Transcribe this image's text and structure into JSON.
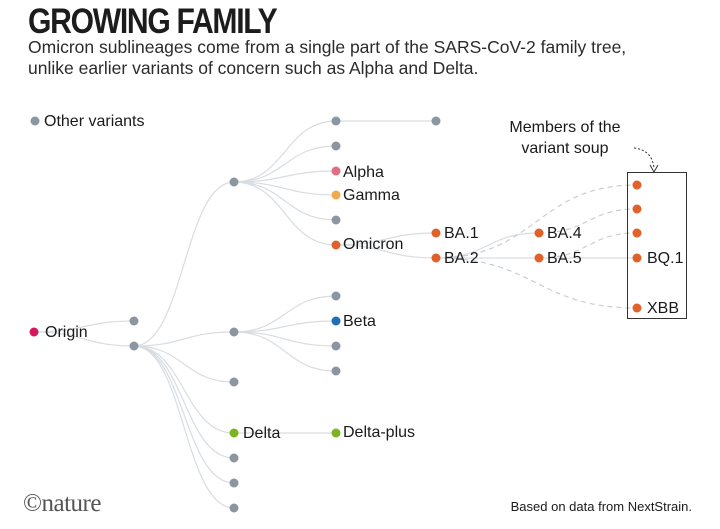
{
  "header": {
    "title": "GROWING FAMILY",
    "subtitle": "Omicron sublineages come from a single part of the SARS-CoV-2 family tree, unlike earlier variants of concern such as Alpha and Delta."
  },
  "legend": {
    "label": "Other variants"
  },
  "annotation": {
    "line1": "Members of the",
    "line2": "variant soup"
  },
  "colors": {
    "origin": "#d6175f",
    "other": "#8c96a1",
    "alpha": "#e56e7e",
    "gamma": "#f0a94e",
    "beta": "#1f6fb6",
    "delta": "#7ab51d",
    "omicron": "#e0622a",
    "link": "#d8dde2",
    "dash": "#c8ced4",
    "box": "#333333"
  },
  "nodes": {
    "origin": "Origin",
    "alpha": "Alpha",
    "gamma": "Gamma",
    "omicron": "Omicron",
    "ba1": "BA.1",
    "ba2": "BA.2",
    "ba4": "BA.4",
    "ba5": "BA.5",
    "bq1": "BQ.1",
    "xbb": "XBB",
    "beta": "Beta",
    "delta": "Delta",
    "delta_plus": "Delta-plus"
  },
  "footer": {
    "logo": "©nature",
    "source": "Based on data from NextStrain."
  }
}
